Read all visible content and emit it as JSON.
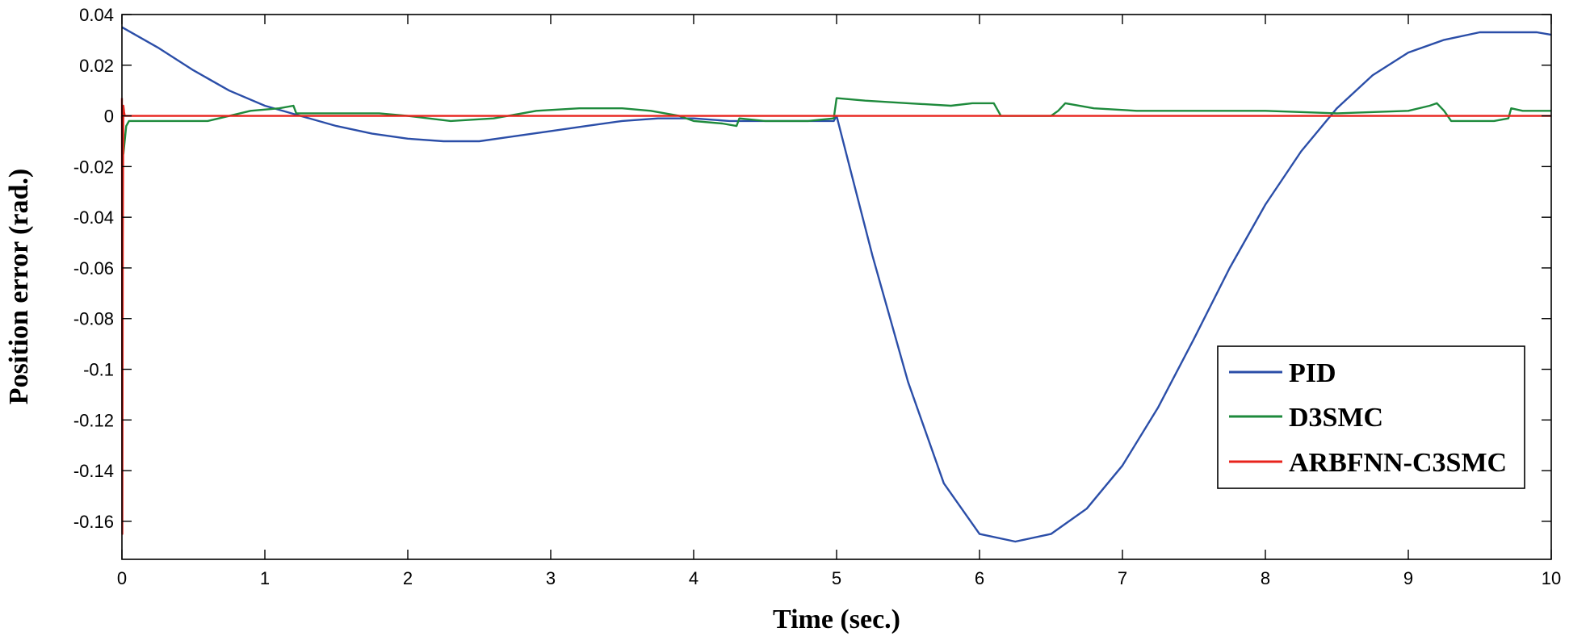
{
  "chart_data": {
    "type": "line",
    "title": "",
    "xlabel": "Time (sec.)",
    "ylabel": "Position error (rad.)",
    "xlim": [
      0,
      10
    ],
    "ylim": [
      -0.175,
      0.04
    ],
    "grid": false,
    "legend_position": "right",
    "xticks": [
      {
        "value": 0,
        "label": "0"
      },
      {
        "value": 1,
        "label": "1"
      },
      {
        "value": 2,
        "label": "2"
      },
      {
        "value": 3,
        "label": "3"
      },
      {
        "value": 4,
        "label": "4"
      },
      {
        "value": 5,
        "label": "5"
      },
      {
        "value": 6,
        "label": "6"
      },
      {
        "value": 7,
        "label": "7"
      },
      {
        "value": 8,
        "label": "8"
      },
      {
        "value": 9,
        "label": "9"
      },
      {
        "value": 10,
        "label": "10"
      }
    ],
    "yticks": [
      {
        "value": 0.04,
        "label": "0.04"
      },
      {
        "value": 0.02,
        "label": "0.02"
      },
      {
        "value": 0,
        "label": "0"
      },
      {
        "value": -0.02,
        "label": "-0.02"
      },
      {
        "value": -0.04,
        "label": "-0.04"
      },
      {
        "value": -0.06,
        "label": "-0.06"
      },
      {
        "value": -0.08,
        "label": "-0.08"
      },
      {
        "value": -0.1,
        "label": "-0.1"
      },
      {
        "value": -0.12,
        "label": "-0.12"
      },
      {
        "value": -0.14,
        "label": "-0.14"
      },
      {
        "value": -0.16,
        "label": "-0.16"
      }
    ],
    "series": [
      {
        "name": "PID",
        "color": "#2b4ea8",
        "x": [
          0,
          0.25,
          0.5,
          0.75,
          1.0,
          1.25,
          1.5,
          1.75,
          2.0,
          2.25,
          2.5,
          2.75,
          3.0,
          3.25,
          3.5,
          3.75,
          4.0,
          4.25,
          4.5,
          4.75,
          4.98,
          5.0,
          5.1,
          5.25,
          5.5,
          5.75,
          6.0,
          6.25,
          6.5,
          6.75,
          7.0,
          7.25,
          7.5,
          7.75,
          8.0,
          8.25,
          8.5,
          8.75,
          9.0,
          9.25,
          9.5,
          9.75,
          9.9,
          10.0
        ],
        "y": [
          0.035,
          0.027,
          0.018,
          0.01,
          0.004,
          0.0,
          -0.004,
          -0.007,
          -0.009,
          -0.01,
          -0.01,
          -0.008,
          -0.006,
          -0.004,
          -0.002,
          -0.001,
          -0.001,
          -0.002,
          -0.002,
          -0.002,
          -0.002,
          0.0,
          -0.022,
          -0.055,
          -0.105,
          -0.145,
          -0.165,
          -0.168,
          -0.165,
          -0.155,
          -0.138,
          -0.115,
          -0.088,
          -0.06,
          -0.035,
          -0.014,
          0.003,
          0.016,
          0.025,
          0.03,
          0.033,
          0.033,
          0.033,
          0.032
        ]
      },
      {
        "name": "D3SMC",
        "color": "#1e8a3c",
        "x": [
          0,
          0.01,
          0.03,
          0.05,
          0.3,
          0.6,
          0.9,
          1.1,
          1.2,
          1.22,
          1.5,
          1.8,
          2.0,
          2.3,
          2.6,
          2.9,
          3.2,
          3.5,
          3.7,
          3.9,
          4.0,
          4.2,
          4.3,
          4.32,
          4.5,
          4.8,
          4.98,
          5.0,
          5.2,
          5.5,
          5.8,
          5.95,
          6.1,
          6.15,
          6.3,
          6.5,
          6.55,
          6.6,
          6.8,
          7.1,
          7.5,
          8.0,
          8.5,
          9.0,
          9.15,
          9.2,
          9.25,
          9.3,
          9.4,
          9.6,
          9.7,
          9.72,
          9.8,
          10.0
        ],
        "y": [
          0.0,
          -0.015,
          -0.004,
          -0.002,
          -0.002,
          -0.002,
          0.002,
          0.003,
          0.004,
          0.001,
          0.001,
          0.001,
          0.0,
          -0.002,
          -0.001,
          0.002,
          0.003,
          0.003,
          0.002,
          0.0,
          -0.002,
          -0.003,
          -0.004,
          -0.001,
          -0.002,
          -0.002,
          -0.001,
          0.007,
          0.006,
          0.005,
          0.004,
          0.005,
          0.005,
          0.0,
          0.0,
          0.0,
          0.002,
          0.005,
          0.003,
          0.002,
          0.002,
          0.002,
          0.001,
          0.002,
          0.004,
          0.005,
          0.002,
          -0.002,
          -0.002,
          -0.002,
          -0.001,
          0.003,
          0.002,
          0.002
        ]
      },
      {
        "name": "ARBFNN-C3SMC",
        "color": "#e8231c",
        "x": [
          0,
          0.003,
          0.006,
          0.01,
          0.015,
          0.02,
          0.04,
          0.5,
          1,
          2,
          3,
          4,
          5,
          6,
          7,
          8,
          9,
          10
        ],
        "y": [
          0.007,
          -0.165,
          -0.05,
          0.004,
          0.0015,
          0.0,
          0.0,
          0.0,
          0.0,
          0.0,
          0.0,
          0.0,
          0.0,
          0.0,
          0.0,
          0.0,
          0.0,
          0.0
        ]
      }
    ]
  }
}
